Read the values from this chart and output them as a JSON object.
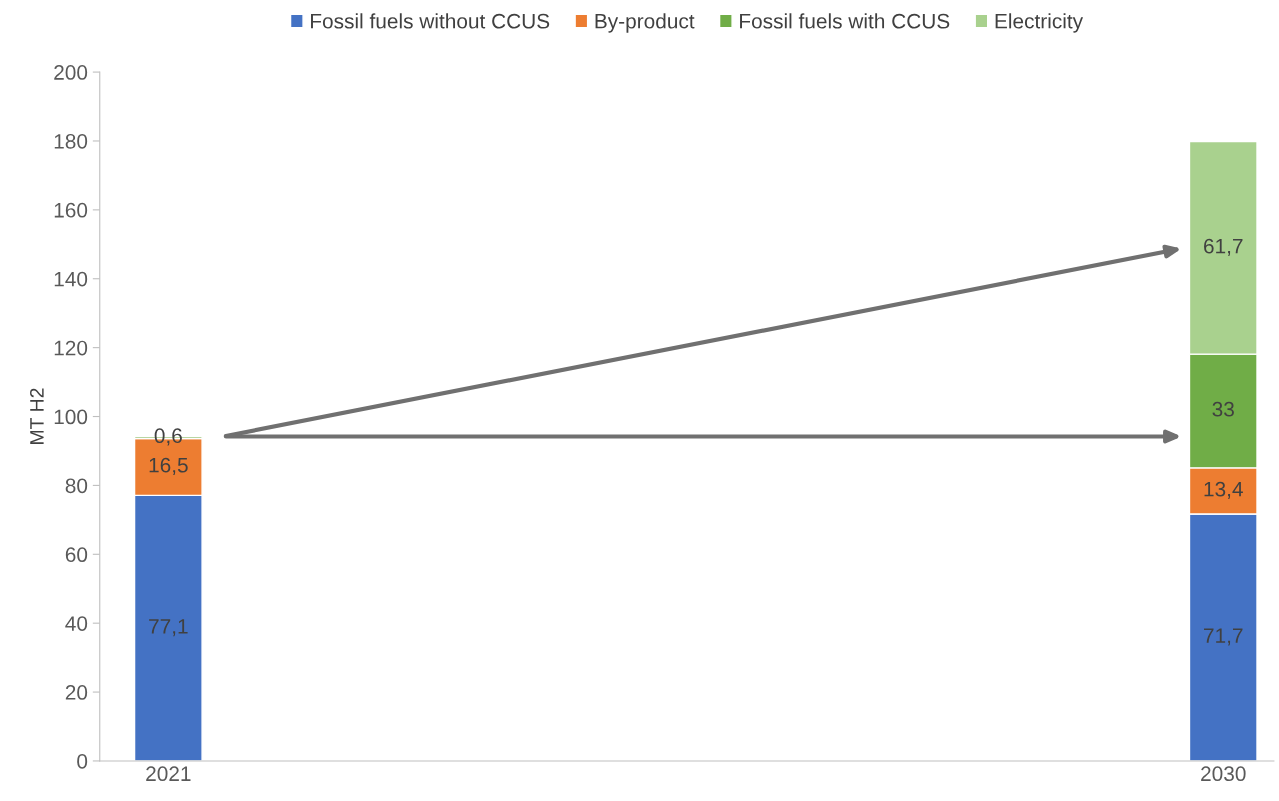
{
  "chart_data": {
    "type": "bar",
    "stacked": true,
    "ylabel": "MT H2",
    "categories": [
      "2021",
      "2030"
    ],
    "series": [
      {
        "name": "Fossil fuels without CCUS",
        "color": "#4472c4",
        "values": [
          77.1,
          71.7
        ],
        "value_labels": [
          "77,1",
          "71,7"
        ]
      },
      {
        "name": "By-product",
        "color": "#ed7d31",
        "values": [
          16.5,
          13.4
        ],
        "value_labels": [
          "16,5",
          "13,4"
        ]
      },
      {
        "name": "Fossil fuels with CCUS",
        "color": "#70ad47",
        "values": [
          0.6,
          33
        ],
        "value_labels": [
          "0,6",
          "33"
        ]
      },
      {
        "name": "Electricity",
        "color": "#a9d18e",
        "values": [
          null,
          61.7
        ],
        "value_labels": [
          null,
          "61,7"
        ]
      }
    ],
    "ylim": [
      0,
      200
    ],
    "yticks": [
      0,
      20,
      40,
      60,
      80,
      100,
      120,
      140,
      160,
      180,
      200
    ],
    "grid": false,
    "legend": "top"
  }
}
